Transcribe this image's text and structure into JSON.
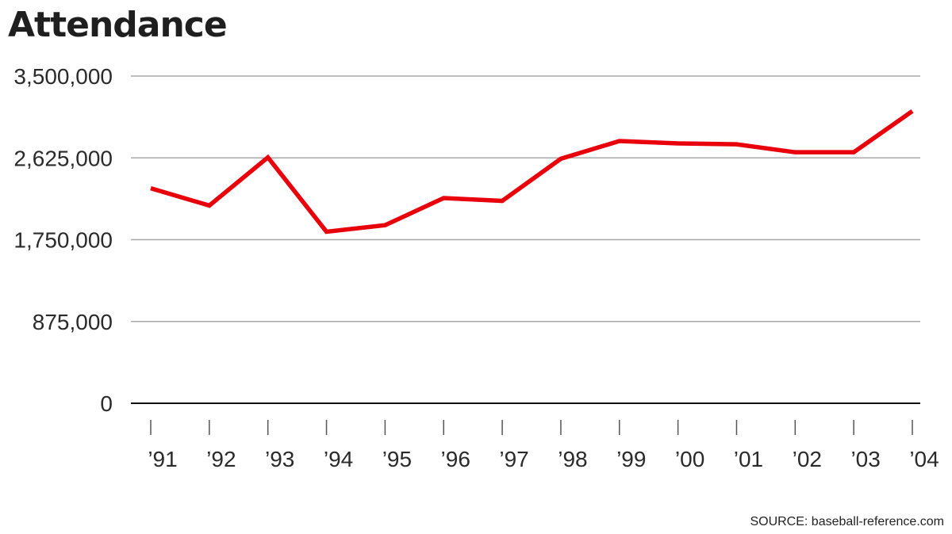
{
  "chart_data": {
    "type": "line",
    "title": "Attendance",
    "categories": [
      "’91",
      "’92",
      "’93",
      "’94",
      "’95",
      "’96",
      "’97",
      "’98",
      "’99",
      "’00",
      "’01",
      "’02",
      "’03",
      "’04"
    ],
    "series": [
      {
        "values": [
          2300000,
          2115000,
          2630000,
          1835000,
          1905000,
          2195000,
          2165000,
          2615000,
          2805000,
          2780000,
          2770000,
          2685000,
          2685000,
          3125000
        ]
      }
    ],
    "yticks": [
      0,
      875000,
      1750000,
      2625000,
      3500000
    ],
    "ytick_labels": [
      "0",
      "875,000",
      "1,750,000",
      "2,625,000",
      "3,500,000"
    ],
    "ylim": [
      0,
      3500000
    ],
    "grid": true,
    "line_color": "#e8000b",
    "xlabel": "",
    "ylabel": ""
  },
  "source": "SOURCE: baseball-reference.com"
}
